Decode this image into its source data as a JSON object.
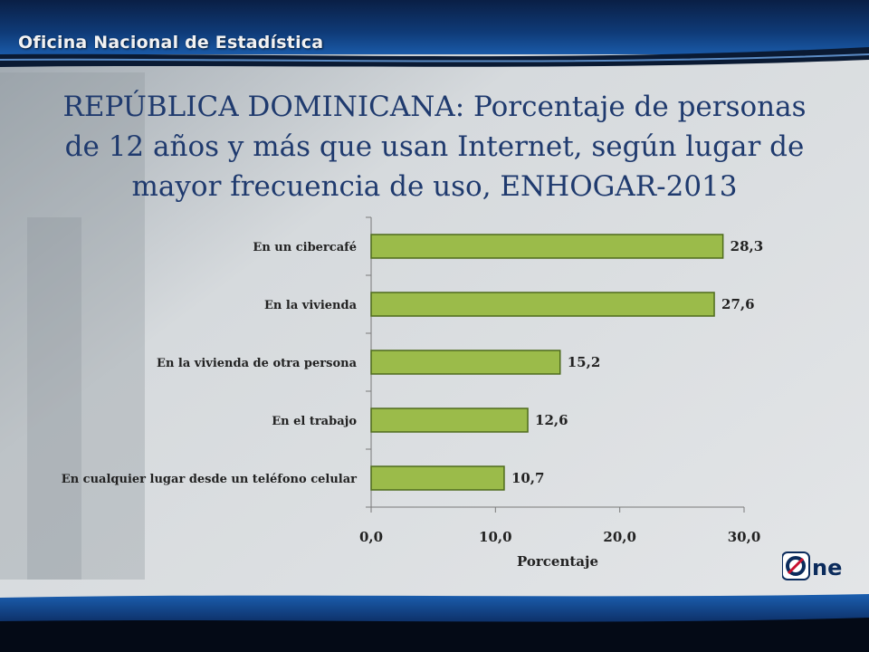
{
  "header": {
    "org_name": "Oficina Nacional de Estadística"
  },
  "title_lines": [
    "REPÚBLICA DOMINICANA: Porcentaje de personas",
    "de 12 años y más que usan Internet, según lugar de",
    "mayor frecuencia de uso, ENHOGAR-2013"
  ],
  "logo": {
    "text": "One",
    "icon": "one-logo"
  },
  "colors": {
    "bar_fill": "#9bbb4a",
    "bar_stroke": "#4e6b1c",
    "title": "#1f3a6e",
    "header": "#0b2b5c"
  },
  "chart_data": {
    "type": "bar",
    "orientation": "horizontal",
    "categories": [
      "En un cibercafé",
      "En la vivienda",
      "En la vivienda de otra persona",
      "En el trabajo",
      "En cualquier lugar desde un teléfono celular"
    ],
    "values": [
      28.3,
      27.6,
      15.2,
      12.6,
      10.7
    ],
    "value_labels": [
      "28,3",
      "27,6",
      "15,2",
      "12,6",
      "10,7"
    ],
    "xlabel": "Porcentaje",
    "ylabel": "",
    "xlim": [
      0,
      30
    ],
    "x_ticks": [
      0,
      10,
      20,
      30
    ],
    "x_tick_labels": [
      "0,0",
      "10,0",
      "20,0",
      "30,0"
    ],
    "grid": false,
    "legend": "none"
  }
}
